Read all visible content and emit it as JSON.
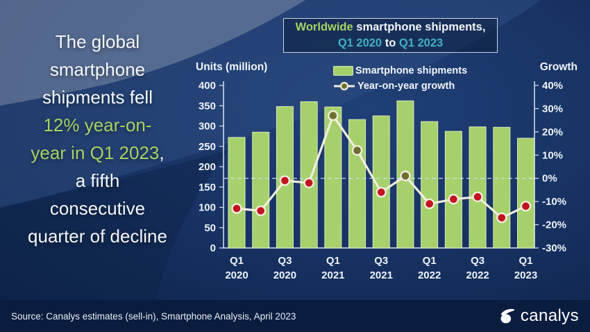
{
  "headline": {
    "part1": "The global smartphone shipments fell ",
    "part2_highlight": "12% year-on-year in Q1 2023",
    "part3": ", a fifth consecutive quarter of decline"
  },
  "title_box": {
    "line1_highlight": "Worldwide",
    "line1_rest": " smartphone shipments,",
    "line2_range_start": "Q1 2020",
    "line2_connector": " to ",
    "line2_range_end": "Q1 2023"
  },
  "legend": {
    "bar_series": "Smartphone shipments",
    "line_series": "Year-on-year growth"
  },
  "axis_titles": {
    "left": "Units (million)",
    "right": "Growth"
  },
  "footer": {
    "source": "Source: Canalys estimates (sell-in), Smartphone Analysis, April 2023",
    "logo_text": "canalys"
  },
  "colors": {
    "bar_fill": "#a6d06c",
    "bar_edge": "#dcedbd",
    "line": "#f2edde",
    "marker_negative": "#c11420",
    "marker_positive": "#6c7031",
    "accent_green_text": "#a8d162",
    "accent_teal_text": "#41b1c5",
    "axis": "#d9e4f3"
  },
  "chart_data": {
    "type": "bar",
    "title": "Worldwide smartphone shipments, Q1 2020 to Q1 2023",
    "categories": [
      "Q1 2020",
      "Q2 2020",
      "Q3 2020",
      "Q4 2020",
      "Q1 2021",
      "Q2 2021",
      "Q3 2021",
      "Q4 2021",
      "Q1 2022",
      "Q2 2022",
      "Q3 2022",
      "Q4 2022",
      "Q1 2023"
    ],
    "x_tick_labels_shown": [
      "Q1 2020",
      "Q3 2020",
      "Q1 2021",
      "Q3 2021",
      "Q1 2022",
      "Q3 2022",
      "Q1 2023"
    ],
    "series": [
      {
        "name": "Smartphone shipments",
        "type": "bar",
        "axis": "left",
        "values": [
          272,
          285,
          348,
          360,
          347,
          316,
          325,
          362,
          311,
          287,
          298,
          297,
          270
        ]
      },
      {
        "name": "Year-on-year growth",
        "type": "line",
        "axis": "right",
        "unit": "%",
        "values": [
          -13,
          -14,
          -1,
          -2,
          27,
          12,
          -6,
          1,
          -11,
          -9,
          -8,
          -17,
          -12
        ]
      }
    ],
    "left_axis": {
      "label": "Units (million)",
      "min": 0,
      "max": 400,
      "step": 50
    },
    "right_axis": {
      "label": "Growth",
      "min": -30,
      "max": 40,
      "step": 10,
      "format": "percent"
    },
    "zero_growth_dashed_line": true,
    "legend_position": "top"
  }
}
